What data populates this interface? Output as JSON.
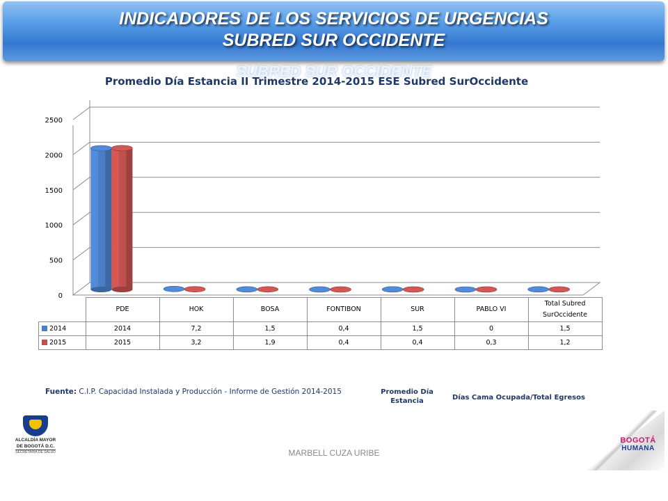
{
  "header": {
    "title_line1": "INDICADORES DE LOS SERVICIOS DE URGENCIAS",
    "title_line2": "SUBRED SUR OCCIDENTE",
    "ghost_text": "SUBRED SUR OCCIDENTE"
  },
  "chart_data": {
    "type": "bar",
    "title": "Promedio Día Estancia II Trimestre 2014-2015 ESE Subred SurOccidente",
    "categories": [
      "PDE",
      "HOK",
      "BOSA",
      "FONTIBON",
      "SUR",
      "PABLO VI",
      "Total Subred SurOccidente"
    ],
    "series": [
      {
        "name": "2014",
        "color": "#4a7ec5",
        "values": [
          2014,
          7.2,
          1.5,
          0.4,
          1.5,
          0,
          1.5
        ],
        "labels": [
          "2014",
          "7,2",
          "1,5",
          "0,4",
          "1,5",
          "0",
          "1,5"
        ]
      },
      {
        "name": "2015",
        "color": "#c0504d",
        "values": [
          2015,
          3.2,
          1.9,
          0.4,
          0.4,
          0.3,
          1.2
        ],
        "labels": [
          "2015",
          "3,2",
          "1,9",
          "0,4",
          "0,4",
          "0,3",
          "1,2"
        ]
      }
    ],
    "ylim": [
      0,
      2500
    ],
    "yticks": [
      0,
      500,
      1000,
      1500,
      2000,
      2500
    ],
    "grid": true,
    "legend": "data-table"
  },
  "notes": {
    "source_label": "Fuente:",
    "source_text": "C.I.P. Capacidad Instalada y Producción - Informe de Gestión",
    "source_years": "2014-2015",
    "measure_name": "Promedio Día Estancia",
    "formula": "Días Cama Ocupada/Total  Egresos"
  },
  "logos": {
    "left_line1": "ALCALDÍA MAYOR",
    "left_line2": "DE BOGOTÁ D.C.",
    "left_line3": "SECRETARÍA DE SALUD",
    "right_line1": "BOGOTÁ",
    "right_line2": "HUMANA"
  },
  "footer": {
    "author": "MARBELL CUZA URIBE"
  }
}
